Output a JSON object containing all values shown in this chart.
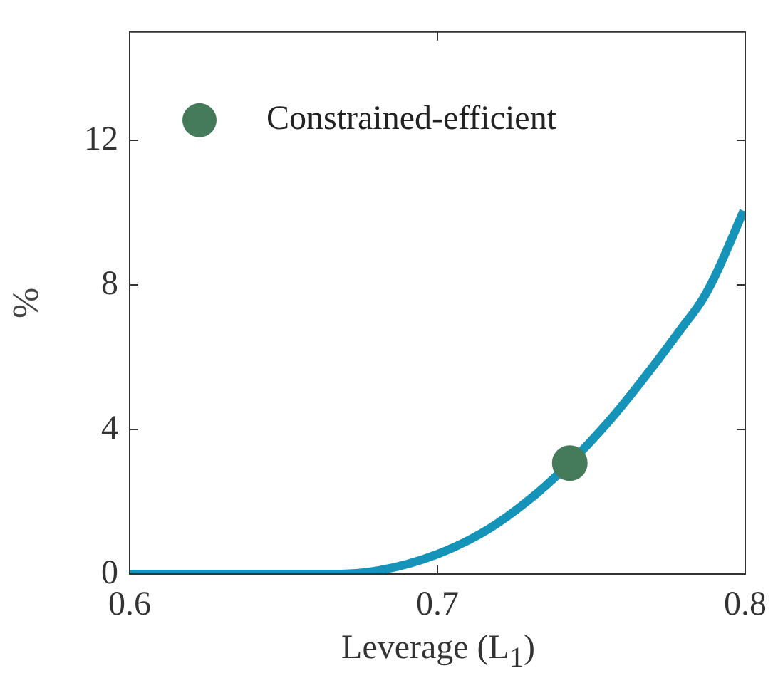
{
  "chart_data": {
    "type": "line",
    "xlabel": "Leverage (L$_{1}$)",
    "ylabel": "%",
    "xlim": [
      0.6,
      0.8
    ],
    "xticks": [
      0.6,
      0.7,
      0.8
    ],
    "ylim": [
      0,
      15
    ],
    "yticks": [
      0,
      4,
      8,
      12
    ],
    "grid": false,
    "legend": "top left",
    "series": [
      {
        "color": "#1593b8",
        "marker": "none",
        "x": [
          0.6,
          0.62,
          0.64,
          0.666,
          0.681,
          0.7,
          0.7165,
          0.73,
          0.743,
          0.755,
          0.76,
          0.77,
          0.78,
          0.786,
          0.79,
          0.7995
        ],
        "values": [
          0,
          0,
          0,
          0,
          0.1,
          0.55,
          1.24,
          2.07,
          3.07,
          4.16,
          4.66,
          5.74,
          6.88,
          7.58,
          8.21,
          10.05
        ]
      },
      {
        "type": "scatter",
        "name": "Constrained-efficient",
        "color": "#457a5a",
        "marker": "circle",
        "x": [
          0.743
        ],
        "values": [
          3.07
        ]
      }
    ]
  }
}
